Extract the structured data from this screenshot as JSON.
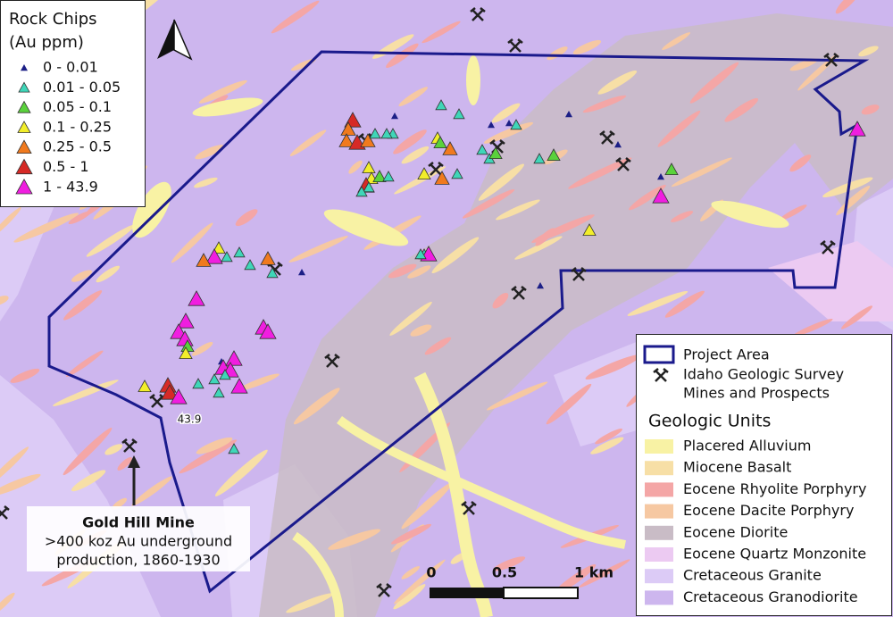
{
  "rock_chips_legend": {
    "title": [
      "Rock Chips",
      "(Au ppm)"
    ],
    "classes": [
      {
        "label": "0 - 0.01",
        "color": "#1c1f86"
      },
      {
        "label": "0.01 - 0.05",
        "color": "#3fd6b8"
      },
      {
        "label": "0.05 - 0.1",
        "color": "#5ad23c"
      },
      {
        "label": "0.1 - 0.25",
        "color": "#f2ee2a"
      },
      {
        "label": "0.25 - 0.5",
        "color": "#f07a1e"
      },
      {
        "label": "0.5 - 1",
        "color": "#d62a26"
      },
      {
        "label": "1 - 43.9",
        "color": "#f01ee0"
      }
    ]
  },
  "map_legend": {
    "project_area": "Project Area",
    "mines": [
      "Idaho Geologic Survey",
      "Mines and Prospects"
    ],
    "units_title": "Geologic Units",
    "units": [
      {
        "label": "Placered Alluvium",
        "color": "#f8f2a4"
      },
      {
        "label": "Miocene Basalt",
        "color": "#f7dfa6"
      },
      {
        "label": "Eocene Rhyolite Porphyry",
        "color": "#f4a6a6"
      },
      {
        "label": "Eocene Dacite Porphyry",
        "color": "#f6c8a2"
      },
      {
        "label": "Eocene Diorite",
        "color": "#c9bcc6"
      },
      {
        "label": "Eocene Quartz Monzonite",
        "color": "#eccaf2"
      },
      {
        "label": "Cretaceous Granite",
        "color": "#dccbf6"
      },
      {
        "label": "Cretaceous Granodiorite",
        "color": "#cdb6ee"
      }
    ]
  },
  "annotations": {
    "sample_label": "43.9",
    "gold_hill": {
      "title": "Gold Hill Mine",
      "lines": [
        ">400 koz Au underground",
        "production, 1860-1930"
      ]
    }
  },
  "scale_bar": {
    "labels": [
      "0",
      "0.5",
      "1 km"
    ]
  }
}
